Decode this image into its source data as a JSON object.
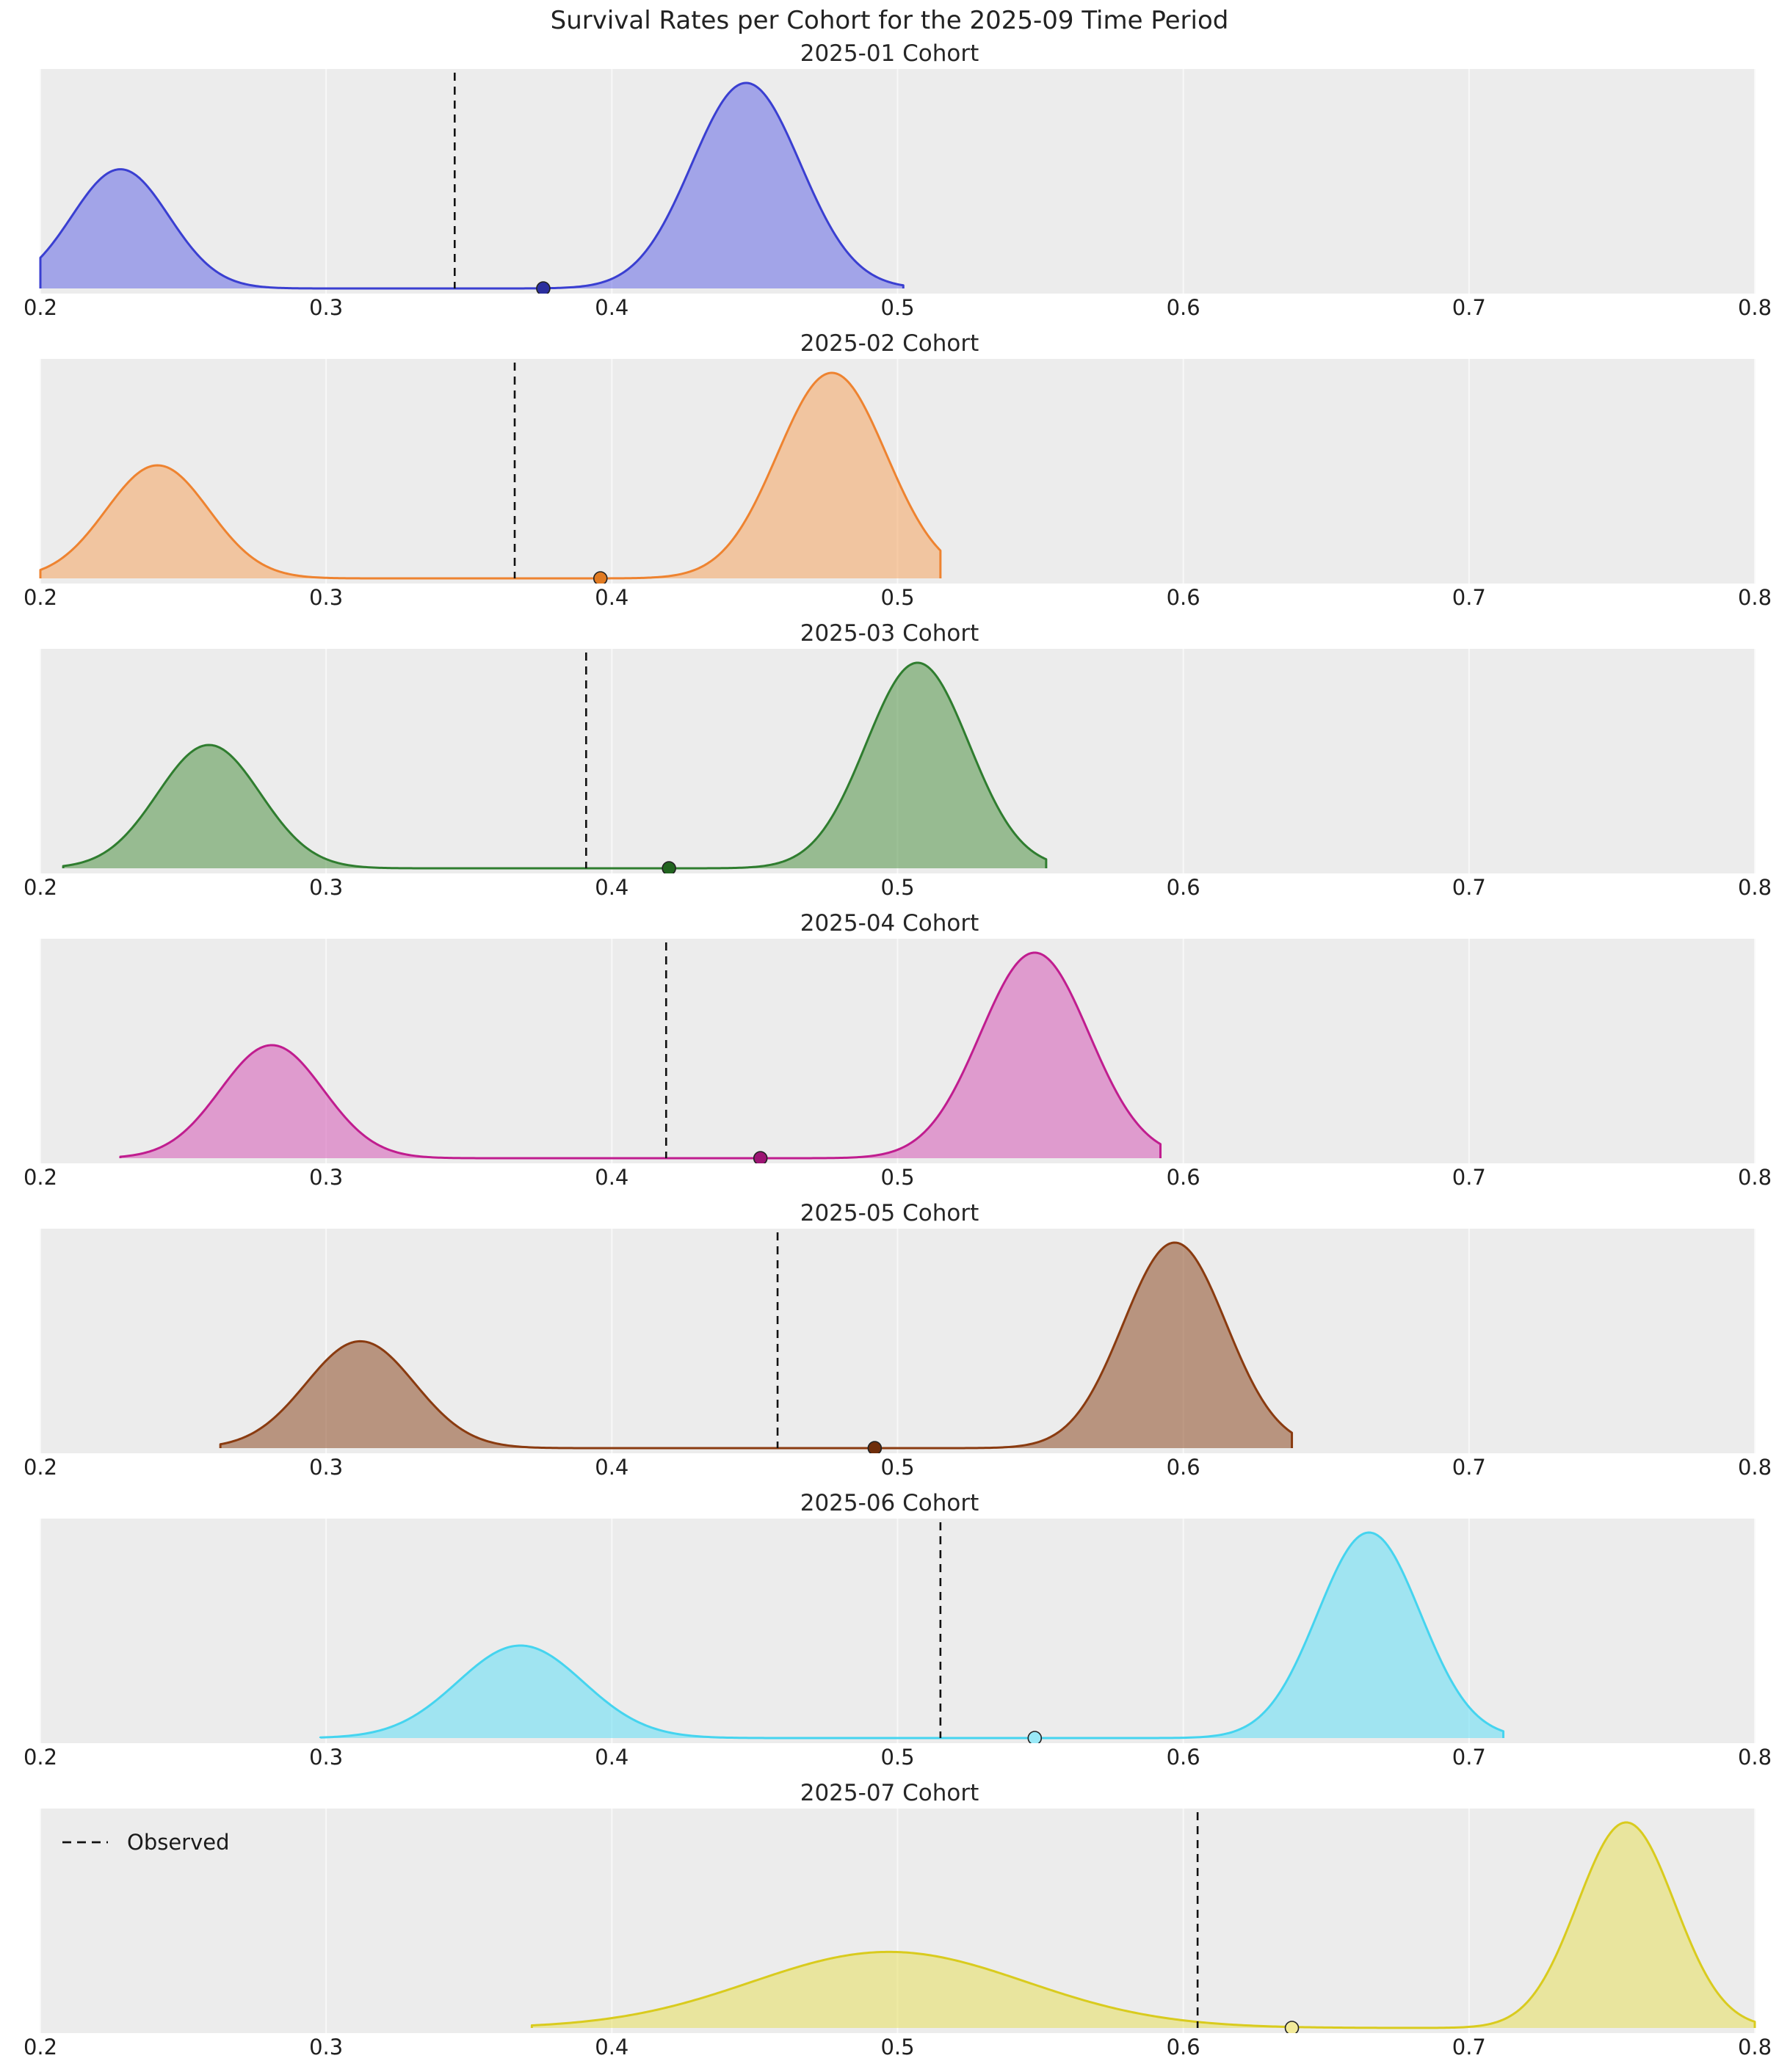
{
  "chart_data": {
    "type": "area",
    "title": "Survival Rates per Cohort for the 2025-09 Time Period",
    "xlabel": "",
    "ylabel": "",
    "xlim": [
      0.2,
      0.8
    ],
    "x_ticks": [
      "0.2",
      "0.3",
      "0.4",
      "0.5",
      "0.6",
      "0.7",
      "0.8"
    ],
    "x_tick_values": [
      0.2,
      0.3,
      0.4,
      0.5,
      0.6,
      0.7,
      0.8
    ],
    "grid": true,
    "plot_bg": "#ececec",
    "grid_color": "#f8f8f8",
    "observed_line_color": "#111111",
    "legend": {
      "label": "Observed",
      "line_style": "dashed",
      "position": "upper-left-of-last-subplot"
    },
    "subplots": [
      {
        "title": "2025-01 Cohort",
        "line_color": "#3a3fd1",
        "fill_color": "rgba(88,92,228,0.50)",
        "dot_color": "#2c2f9e",
        "support": [
          0.2,
          0.502
        ],
        "modes": [
          {
            "center": 0.228,
            "sd": 0.017,
            "weight": 0.58
          },
          {
            "center": 0.447,
            "sd": 0.019,
            "weight": 1.0
          }
        ],
        "observed": 0.345,
        "posterior_dot": 0.376
      },
      {
        "title": "2025-02 Cohort",
        "line_color": "#ee8330",
        "fill_color": "rgba(246,166,98,0.55)",
        "dot_color": "#e07a22",
        "support": [
          0.2,
          0.515
        ],
        "modes": [
          {
            "center": 0.241,
            "sd": 0.018,
            "weight": 0.55
          },
          {
            "center": 0.477,
            "sd": 0.019,
            "weight": 1.0
          }
        ],
        "observed": 0.366,
        "posterior_dot": 0.396
      },
      {
        "title": "2025-03 Cohort",
        "line_color": "#2f7d2f",
        "fill_color": "rgba(95,155,85,0.60)",
        "dot_color": "#21641f",
        "support": [
          0.208,
          0.552
        ],
        "modes": [
          {
            "center": 0.259,
            "sd": 0.018,
            "weight": 0.6
          },
          {
            "center": 0.507,
            "sd": 0.018,
            "weight": 1.0
          }
        ],
        "observed": 0.391,
        "posterior_dot": 0.42
      },
      {
        "title": "2025-04 Cohort",
        "line_color": "#c01d8f",
        "fill_color": "rgba(216,112,190,0.65)",
        "dot_color": "#9c1573",
        "support": [
          0.228,
          0.592
        ],
        "modes": [
          {
            "center": 0.281,
            "sd": 0.018,
            "weight": 0.55
          },
          {
            "center": 0.548,
            "sd": 0.019,
            "weight": 1.0
          }
        ],
        "observed": 0.419,
        "posterior_dot": 0.452
      },
      {
        "title": "2025-05 Cohort",
        "line_color": "#8a3b10",
        "fill_color": "rgba(150,90,55,0.60)",
        "dot_color": "#6e2d0a",
        "support": [
          0.263,
          0.638
        ],
        "modes": [
          {
            "center": 0.312,
            "sd": 0.019,
            "weight": 0.52
          },
          {
            "center": 0.597,
            "sd": 0.018,
            "weight": 1.0
          }
        ],
        "observed": 0.458,
        "posterior_dot": 0.492
      },
      {
        "title": "2025-06 Cohort",
        "line_color": "#45d4ef",
        "fill_color": "rgba(120,225,245,0.65)",
        "dot_color": "#9ae9f7",
        "support": [
          0.298,
          0.712
        ],
        "modes": [
          {
            "center": 0.368,
            "sd": 0.022,
            "weight": 0.45
          },
          {
            "center": 0.665,
            "sd": 0.018,
            "weight": 1.0
          }
        ],
        "observed": 0.515,
        "posterior_dot": 0.548
      },
      {
        "title": "2025-07 Cohort",
        "line_color": "#d9cb1e",
        "fill_color": "rgba(232,224,95,0.55)",
        "dot_color": "#f2ea9a",
        "support": [
          0.372,
          0.8
        ],
        "modes": [
          {
            "center": 0.497,
            "sd": 0.048,
            "weight": 0.37
          },
          {
            "center": 0.755,
            "sd": 0.017,
            "weight": 1.0
          }
        ],
        "observed": 0.605,
        "posterior_dot": 0.638
      }
    ]
  }
}
